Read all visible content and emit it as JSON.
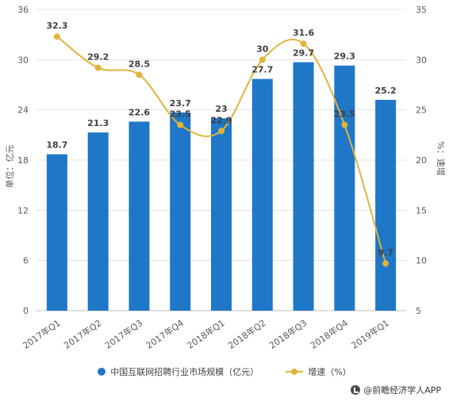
{
  "chart_data": {
    "type": "bar+line",
    "categories": [
      "2017年Q1",
      "2017年Q2",
      "2017年Q3",
      "2017年Q4",
      "2018年Q1",
      "2018年Q2",
      "2018年Q3",
      "2018年Q4",
      "2019年Q1"
    ],
    "series": [
      {
        "name": "中国互联网招聘行业市场规模（亿元）",
        "type": "bar",
        "axis": "left",
        "values": [
          18.7,
          21.3,
          22.6,
          23.7,
          23,
          27.7,
          29.7,
          29.3,
          25.2
        ],
        "labels": [
          "18.7",
          "21.3",
          "22.6",
          "23.7",
          "23",
          "27.7",
          "29.7",
          "29.3",
          "25.2"
        ]
      },
      {
        "name": "增速（%）",
        "type": "line",
        "axis": "right",
        "values": [
          32.3,
          29.2,
          28.5,
          23.5,
          22.9,
          30,
          31.6,
          23.5,
          9.7
        ],
        "labels": [
          "32.3",
          "29.2",
          "28.5",
          "23.5",
          "22.9",
          "30",
          "31.6",
          "23.5",
          "9.7"
        ]
      }
    ],
    "left_axis": {
      "label": "单位：亿元",
      "ylim": [
        0,
        36
      ],
      "ticks": [
        "0",
        "6",
        "12",
        "18",
        "24",
        "30",
        "36"
      ]
    },
    "right_axis": {
      "label": "%：速增",
      "ylim": [
        5,
        35
      ],
      "ticks": [
        "5",
        "10",
        "15",
        "20",
        "25",
        "30",
        "35"
      ]
    },
    "legend_position": "bottom",
    "colors": {
      "bar": "#1f77c8",
      "line": "#e0b43a"
    }
  },
  "legend": {
    "bar_label": "中国互联网招聘行业市场规模（亿元）",
    "line_label": "增速（%）"
  },
  "credit": {
    "text": "@前瞻经济学人APP"
  }
}
